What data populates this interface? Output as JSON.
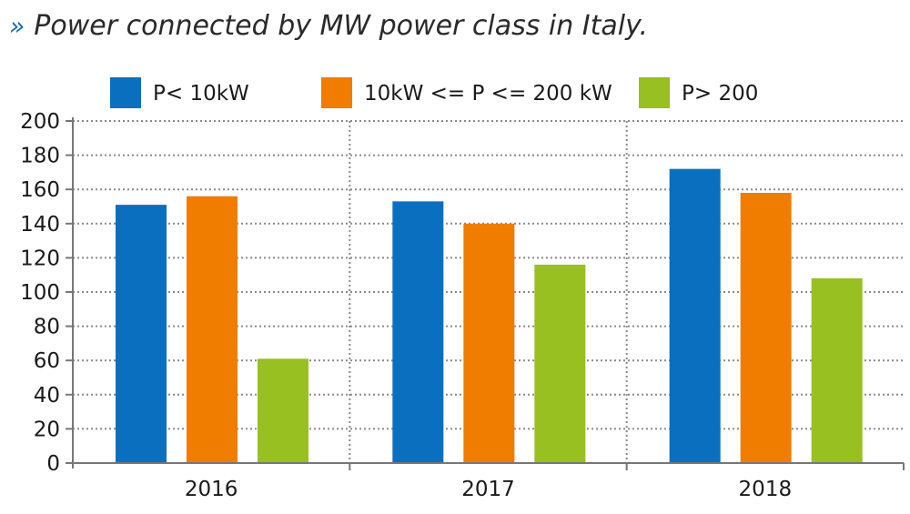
{
  "header": {
    "marker": "»",
    "title": "Power connected by MW power class in Italy."
  },
  "chart_data": {
    "type": "bar",
    "title": "Power connected by MW power class in Italy.",
    "xlabel": "",
    "ylabel": "",
    "categories": [
      "2016",
      "2017",
      "2018"
    ],
    "series": [
      {
        "name": "P< 10kW",
        "color": "#0b6fc0",
        "values": [
          151,
          153,
          172
        ]
      },
      {
        "name": "10kW <= P <= 200 kW",
        "color": "#f07c00",
        "values": [
          156,
          140,
          158
        ]
      },
      {
        "name": "P> 200",
        "color": "#97c020",
        "values": [
          61,
          116,
          108
        ]
      }
    ],
    "ylim": [
      0,
      200
    ],
    "yticks": [
      0,
      20,
      40,
      60,
      80,
      100,
      120,
      140,
      160,
      180,
      200
    ],
    "grid": true,
    "grid_style": "dotted",
    "legend_position": "top"
  }
}
